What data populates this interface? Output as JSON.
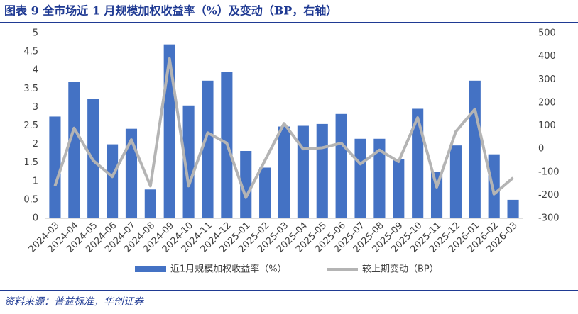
{
  "chart_data": {
    "type": "bar",
    "title": "图表 9   全市场近 1 月规模加权收益率（%）及变动（BP，右轴）",
    "source": "资料来源：普益标准，华创证券",
    "categories": [
      "2024-03",
      "2024-04",
      "2024-05",
      "2024-06",
      "2024-07",
      "2024-08",
      "2024-09",
      "2024-10",
      "2024-11",
      "2024-12",
      "2025-01",
      "2025-02",
      "2025-03",
      "2025-04",
      "2025-05",
      "2025-06",
      "2025-07",
      "2025-08",
      "2025-09",
      "2025-10",
      "2025-11",
      "2025-12",
      "2026-01",
      "2026-02",
      "2026-03"
    ],
    "series": [
      {
        "name": "近1月规模加权收益率（%）",
        "type": "bar",
        "color": "#4472c4",
        "values": [
          2.75,
          3.68,
          3.23,
          2.0,
          2.42,
          0.78,
          4.7,
          3.05,
          3.72,
          3.95,
          1.82,
          1.37,
          2.48,
          2.5,
          2.55,
          2.82,
          2.15,
          2.15,
          1.6,
          2.96,
          1.26,
          1.97,
          3.72,
          1.73,
          0.5
        ]
      },
      {
        "name": "较上期变动（BP）",
        "type": "line",
        "axis": "y2",
        "color": "#b4b4b4",
        "values": [
          -160,
          90,
          -50,
          -120,
          40,
          -160,
          390,
          -160,
          70,
          25,
          -210,
          -50,
          110,
          0,
          5,
          25,
          -65,
          -5,
          -55,
          135,
          -165,
          75,
          172,
          -195,
          -125
        ]
      }
    ],
    "ylim": [
      0,
      5
    ],
    "yticks": [
      0,
      0.5,
      1,
      1.5,
      2,
      2.5,
      3,
      3.5,
      4,
      4.5,
      5
    ],
    "y2lim": [
      -300,
      500
    ],
    "y2ticks": [
      -300,
      -200,
      -100,
      0,
      100,
      200,
      300,
      400,
      500
    ]
  }
}
